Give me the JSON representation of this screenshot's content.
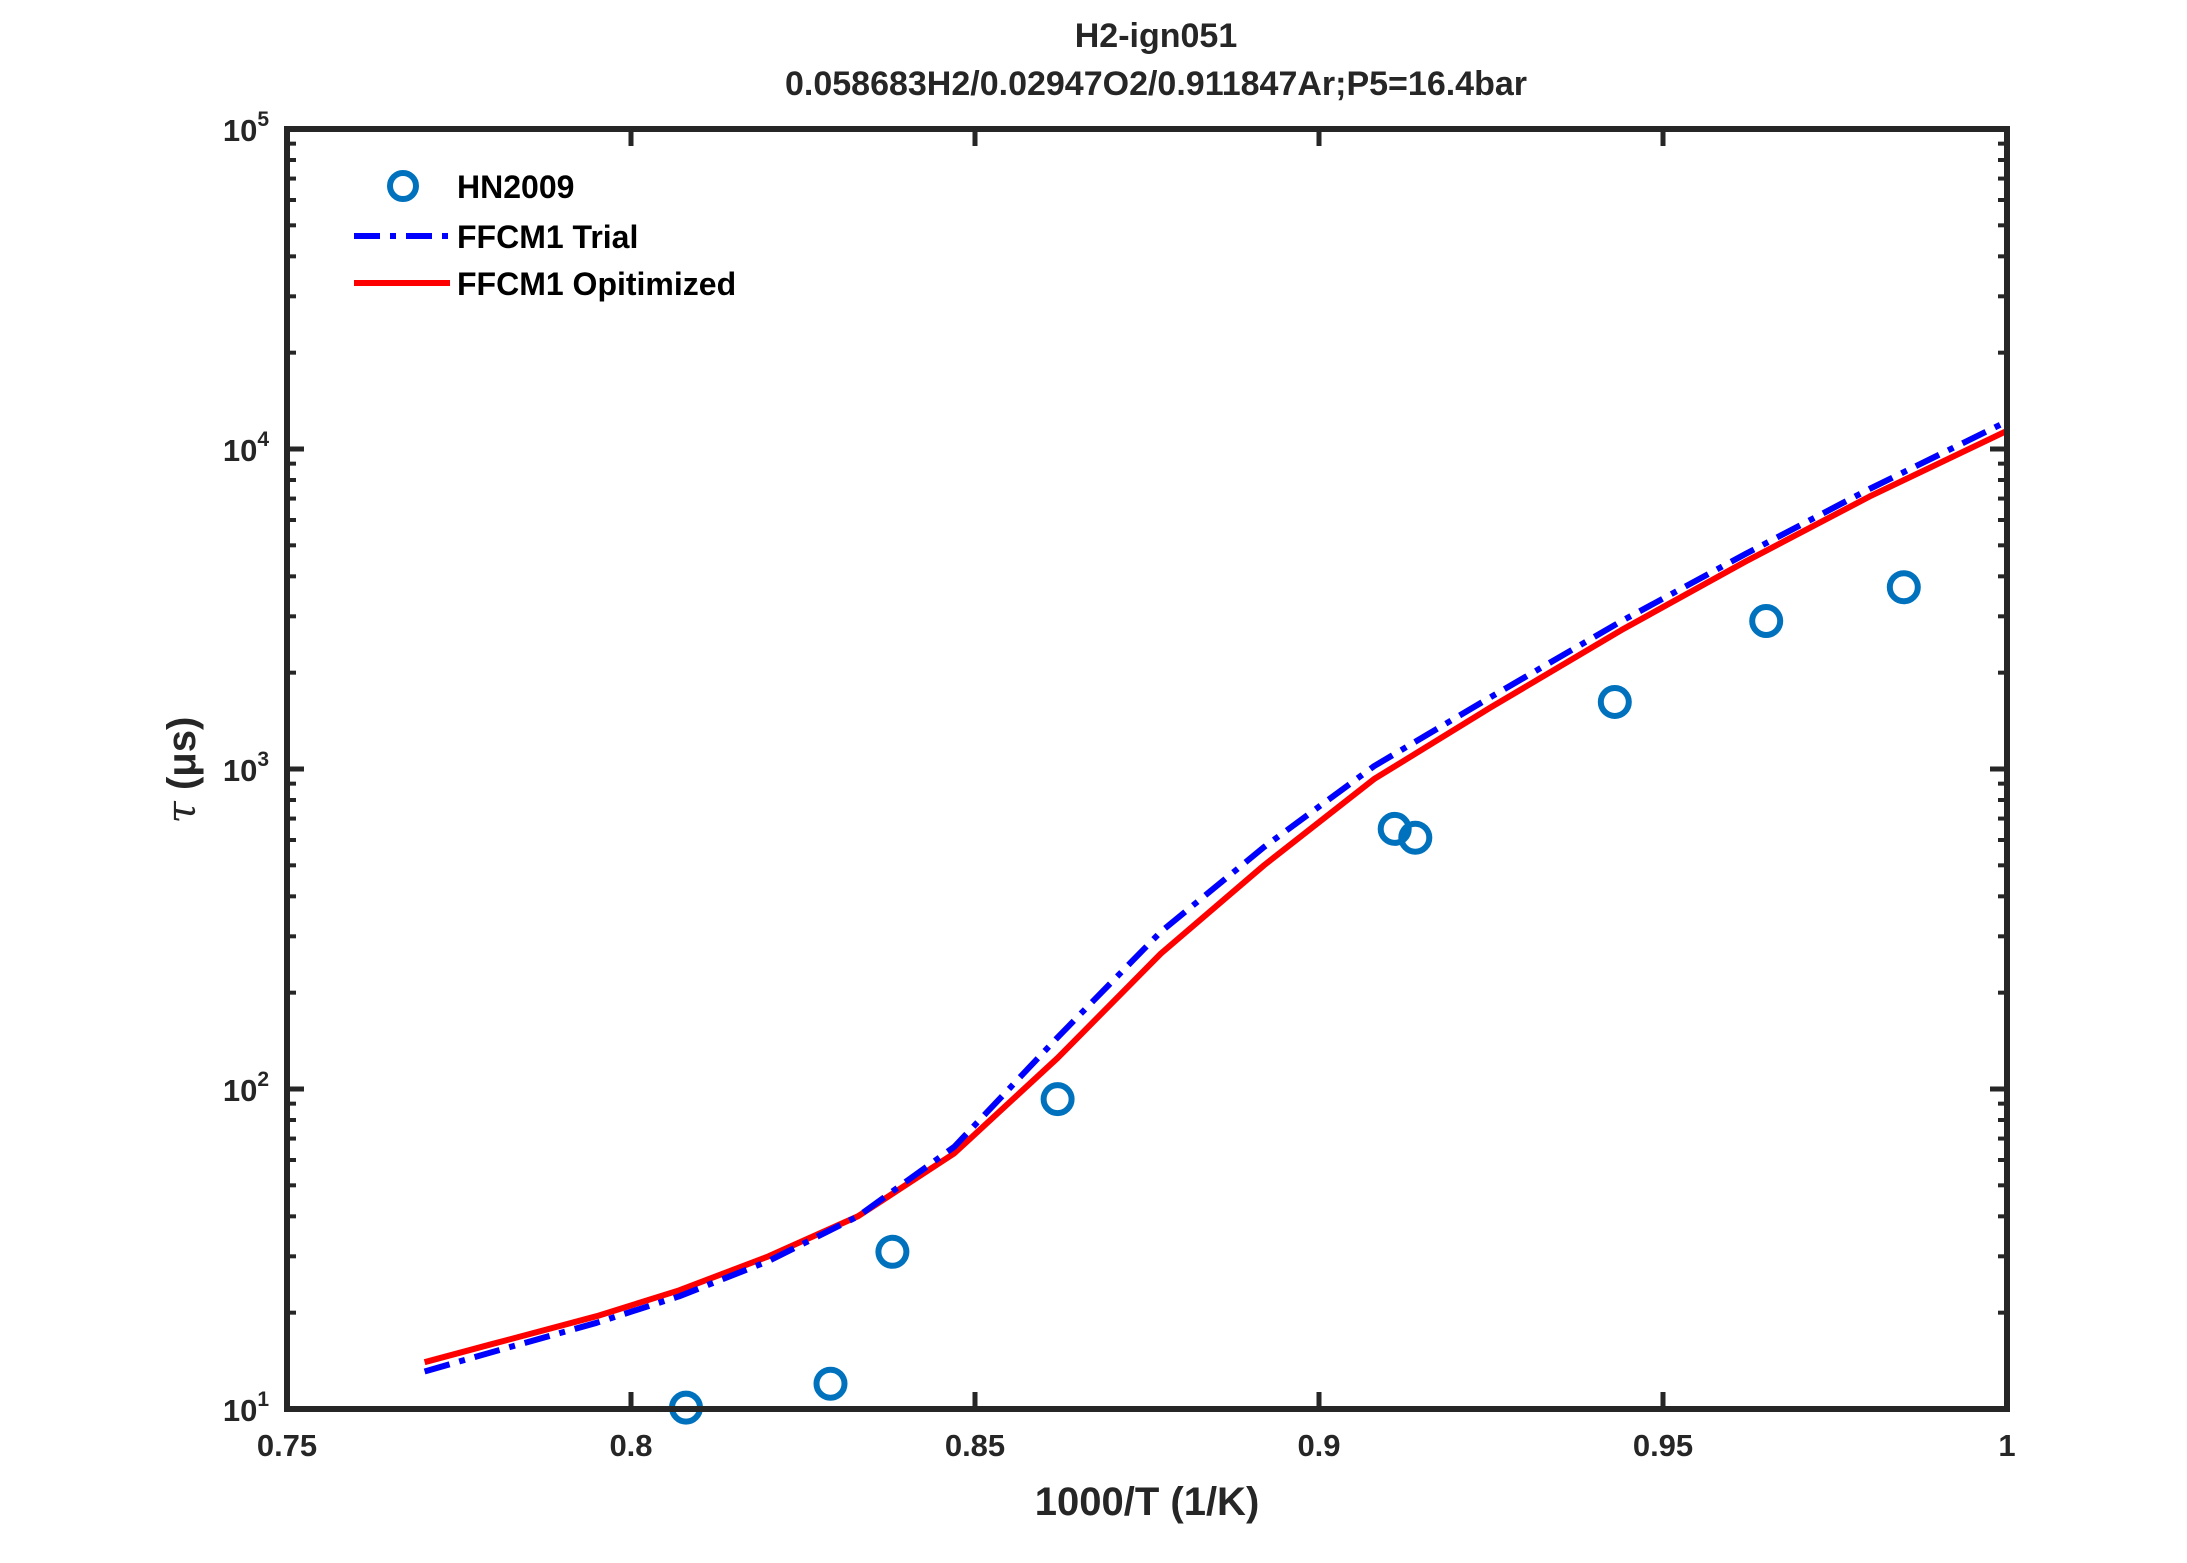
{
  "chart_data": {
    "type": "scatter",
    "title": "H2-ign051",
    "subtitle": "0.058683H2/0.02947O2/0.911847Ar;P5=16.4bar",
    "xlabel": "1000/T (1/K)",
    "ylabel_symbol": "τ",
    "ylabel": "(μs)",
    "xlim": [
      0.75,
      1.0
    ],
    "ylim": [
      10,
      100000
    ],
    "yscale": "log",
    "grid": false,
    "legend_position": "top-left",
    "x_ticks": [
      {
        "value": 0.75,
        "label": "0.75"
      },
      {
        "value": 0.8,
        "label": "0.8"
      },
      {
        "value": 0.85,
        "label": "0.85"
      },
      {
        "value": 0.9,
        "label": "0.9"
      },
      {
        "value": 0.95,
        "label": "0.95"
      },
      {
        "value": 1.0,
        "label": "1"
      }
    ],
    "y_ticks": [
      {
        "value": 10,
        "base": "10",
        "exp": "1"
      },
      {
        "value": 100,
        "base": "10",
        "exp": "2"
      },
      {
        "value": 1000,
        "base": "10",
        "exp": "3"
      },
      {
        "value": 10000,
        "base": "10",
        "exp": "4"
      },
      {
        "value": 100000,
        "base": "10",
        "exp": "5"
      }
    ],
    "series": [
      {
        "name": "HN2009",
        "kind": "markers",
        "color": "#0072BD",
        "x": [
          0.808,
          0.829,
          0.838,
          0.862,
          0.911,
          0.914,
          0.943,
          0.965,
          0.985
        ],
        "y": [
          10.1,
          12,
          31,
          93,
          650,
          610,
          1620,
          2900,
          3700
        ]
      },
      {
        "name": "FFCM1 Trial",
        "kind": "dashdot-line",
        "color": "#0000FF",
        "x": [
          0.77,
          0.78,
          0.795,
          0.807,
          0.82,
          0.833,
          0.847,
          0.862,
          0.877,
          0.892,
          0.908,
          0.925,
          0.944,
          0.962,
          0.98,
          1.0
        ],
        "y": [
          13.1,
          15.1,
          18.6,
          22.5,
          29,
          40,
          66,
          145,
          310,
          570,
          1020,
          1680,
          2900,
          4700,
          7500,
          12200
        ]
      },
      {
        "name": "FFCM1 Opitimized",
        "kind": "solid-line",
        "color": "#FF0000",
        "x": [
          0.77,
          0.78,
          0.795,
          0.807,
          0.82,
          0.833,
          0.847,
          0.862,
          0.877,
          0.892,
          0.908,
          0.925,
          0.944,
          0.962,
          0.98,
          1.0
        ],
        "y": [
          14,
          16,
          19.5,
          23.5,
          30,
          40,
          63,
          125,
          265,
          500,
          930,
          1560,
          2720,
          4450,
          7100,
          11400
        ]
      }
    ]
  }
}
